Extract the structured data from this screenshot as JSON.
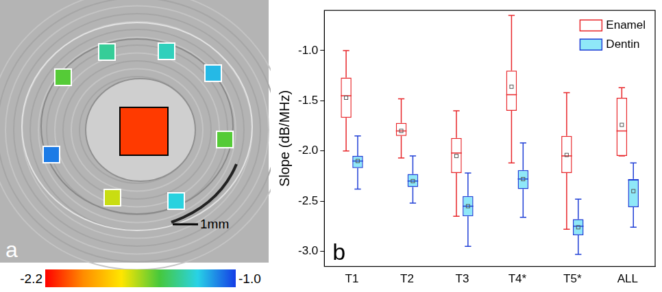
{
  "chart_data": {
    "type": "box",
    "panel_label": "b",
    "y_label": "Slope (dB/MHz)",
    "categories": [
      "T1",
      "T2",
      "T3",
      "T4*",
      "T5*",
      "ALL"
    ],
    "ylim": [
      -3.15,
      -0.6
    ],
    "yticks": [
      {
        "value": -1.0,
        "label": "-1.0"
      },
      {
        "value": -1.5,
        "label": "-1.5"
      },
      {
        "value": -2.0,
        "label": "-2.0"
      },
      {
        "value": -2.5,
        "label": "-2.5"
      },
      {
        "value": -3.0,
        "label": "-3.0"
      }
    ],
    "grid": false,
    "legend": "upper right",
    "series": [
      {
        "name": "Enamel",
        "color": "#e8262a",
        "high": [
          -1.0,
          -1.48,
          -1.6,
          -0.65,
          -1.42,
          -1.37
        ],
        "q3": [
          -1.27,
          -1.72,
          -1.87,
          -1.2,
          -1.85,
          -1.47
        ],
        "median": [
          -1.45,
          -1.8,
          -2.02,
          -1.44,
          -2.05,
          -1.8
        ],
        "mean": [
          -1.47,
          -1.8,
          -2.05,
          -1.36,
          -2.04,
          -1.74
        ],
        "q1": [
          -1.67,
          -1.85,
          -2.22,
          -1.6,
          -2.22,
          -2.05
        ],
        "low": [
          -2.0,
          -2.07,
          -2.65,
          -2.12,
          -2.78,
          -2.05
        ]
      },
      {
        "name": "Dentin",
        "color": "#1f3fd6",
        "high": [
          -1.85,
          -2.05,
          -2.22,
          -1.92,
          -2.48,
          -2.12
        ],
        "q3": [
          -2.05,
          -2.23,
          -2.45,
          -2.19,
          -2.68,
          -2.28
        ],
        "median": [
          -2.1,
          -2.3,
          -2.55,
          -2.28,
          -2.75,
          -2.29
        ],
        "mean": [
          -2.1,
          -2.3,
          -2.55,
          -2.28,
          -2.76,
          -2.4
        ],
        "q1": [
          -2.17,
          -2.36,
          -2.65,
          -2.38,
          -2.84,
          -2.56
        ],
        "low": [
          -2.38,
          -2.52,
          -2.95,
          -2.66,
          -3.03,
          -2.76
        ]
      }
    ]
  },
  "panel_a": {
    "panel_label": "a",
    "scale_bar": "1mm",
    "colorbar": {
      "range": [
        -2.2,
        -1.0
      ],
      "ticks": [
        -2.2,
        {
          "value": -1.0,
          "label": "-1.0"
        }
      ]
    },
    "regions": [
      {
        "value": -2.1
      },
      {
        "value": -1.35
      },
      {
        "value": -1.3
      },
      {
        "value": -1.5
      },
      {
        "value": -1.2
      },
      {
        "value": -1.5
      },
      {
        "value": -1.1
      },
      {
        "value": -1.65
      },
      {
        "value": -1.25
      }
    ]
  }
}
